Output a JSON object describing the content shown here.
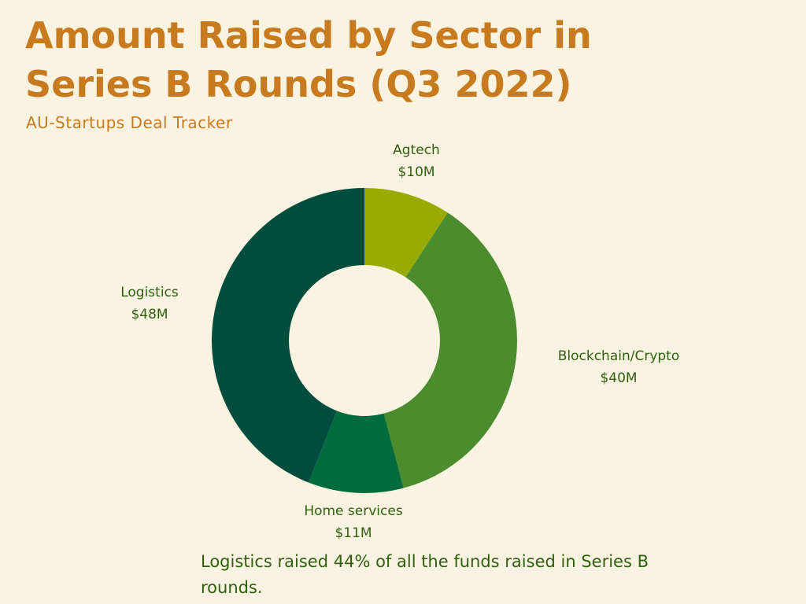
{
  "header": {
    "title_line1": "Amount Raised by Sector in",
    "title_line2": "Series B Rounds (Q3 2022)",
    "subtitle": "AU-Startups Deal Tracker"
  },
  "note": {
    "text": "Logistics raised 44% of all the funds raised in Series B rounds."
  },
  "colors": {
    "background": "#FAF3E1",
    "title": "#C77B1E",
    "label_text": "#2F5F10"
  },
  "chart_data": {
    "type": "pie",
    "donut": true,
    "title": "Amount Raised by Sector in Series B Rounds (Q3 2022)",
    "subtitle": "AU-Startups Deal Tracker",
    "unit": "$M",
    "slices": [
      {
        "label": "Agtech",
        "value": 10,
        "value_label": "$10M",
        "color": "#99AA00"
      },
      {
        "label": "Blockchain/Crypto",
        "value": 40,
        "value_label": "$40M",
        "color": "#4A8C2E"
      },
      {
        "label": "Home services",
        "value": 11,
        "value_label": "$11M",
        "color": "#006B3C"
      },
      {
        "label": "Logistics",
        "value": 48,
        "value_label": "$48M",
        "color": "#004D3D"
      }
    ],
    "legend": "none"
  }
}
